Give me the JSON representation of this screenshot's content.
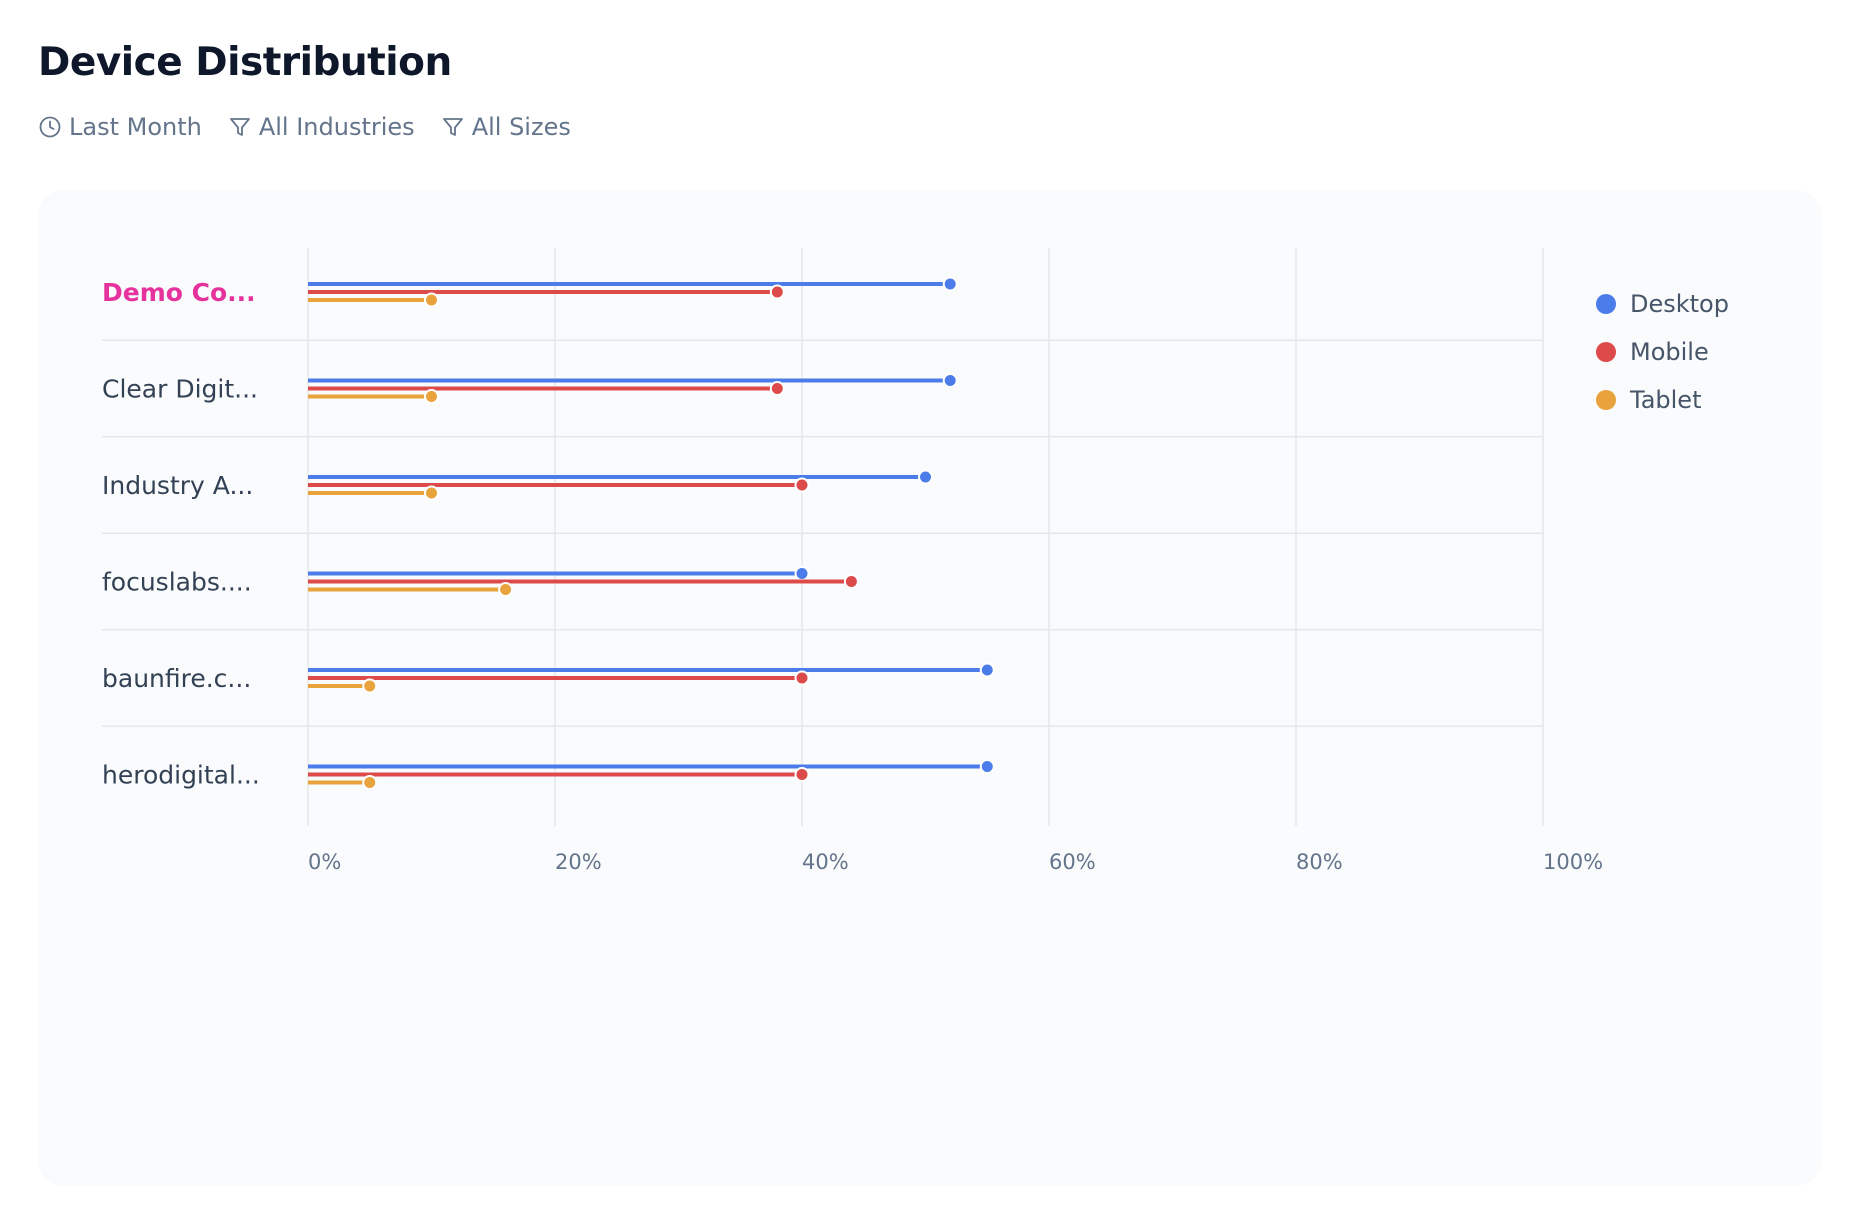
{
  "title": "Device Distribution",
  "filters": [
    {
      "icon": "clock-icon",
      "label": "Last Month"
    },
    {
      "icon": "filter-icon",
      "label": "All Industries"
    },
    {
      "icon": "filter-icon",
      "label": "All Sizes"
    }
  ],
  "colors": {
    "desktop": "#4c7cea",
    "mobile": "#dc4a4a",
    "tablet": "#e8a33c",
    "highlight": "#e5329d",
    "label": "#334155",
    "tick": "#64748b",
    "grid": "#e5e7eb"
  },
  "chart_data": {
    "type": "bar",
    "orientation": "horizontal",
    "style": "lollipop",
    "categories": [
      "Demo Co...",
      "Clear Digit...",
      "Industry A...",
      "focuslabs....",
      "baunfire.c...",
      "herodigital..."
    ],
    "highlighted_category": "Demo Co...",
    "series": [
      {
        "name": "Desktop",
        "color": "#4c7cea",
        "values": [
          52,
          52,
          50,
          40,
          55,
          55
        ]
      },
      {
        "name": "Mobile",
        "color": "#dc4a4a",
        "values": [
          38,
          38,
          40,
          44,
          40,
          40
        ]
      },
      {
        "name": "Tablet",
        "color": "#e8a33c",
        "values": [
          10,
          10,
          10,
          16,
          5,
          5
        ]
      }
    ],
    "x_ticks": [
      "0%",
      "20%",
      "40%",
      "60%",
      "80%",
      "100%"
    ],
    "xlim": [
      0,
      100
    ],
    "unit": "%",
    "grid": true,
    "legend_position": "right"
  }
}
